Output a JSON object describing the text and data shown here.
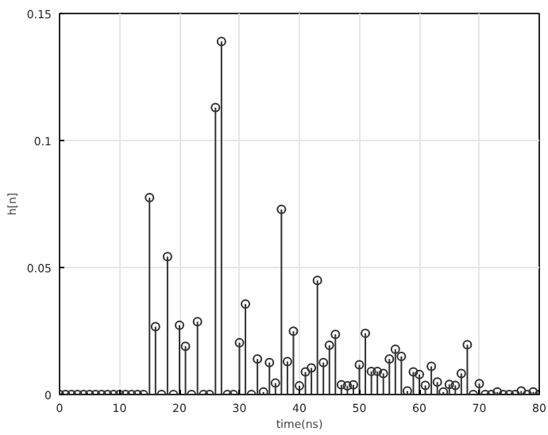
{
  "chart_data": {
    "type": "lollipop",
    "xlabel": "time(ns)",
    "ylabel": "h[n]",
    "x": [
      0,
      1,
      2,
      3,
      4,
      5,
      6,
      7,
      8,
      9,
      10,
      11,
      12,
      13,
      14,
      15,
      16,
      17,
      18,
      19,
      20,
      21,
      22,
      23,
      24,
      25,
      26,
      27,
      28,
      29,
      30,
      31,
      32,
      33,
      34,
      35,
      36,
      37,
      38,
      39,
      40,
      41,
      42,
      43,
      44,
      45,
      46,
      47,
      48,
      49,
      50,
      51,
      52,
      53,
      54,
      55,
      56,
      57,
      58,
      59,
      60,
      61,
      62,
      63,
      64,
      65,
      66,
      67,
      68,
      69,
      70,
      71,
      72,
      73,
      74,
      75,
      76,
      77,
      78,
      79,
      80
    ],
    "series": [
      {
        "color": "#333333",
        "values": [
          0,
          0,
          0,
          0,
          0,
          0,
          0,
          0,
          0,
          0,
          0,
          0,
          0,
          0,
          0,
          0.0775,
          0.0267,
          0,
          0.0543,
          0,
          0.0273,
          0.019,
          0,
          0.0287,
          0,
          0,
          0.113,
          0.139,
          0,
          0,
          0.0204,
          0.0356,
          0,
          0.014,
          0.001,
          0.0126,
          0.0045,
          0.0729,
          0.013,
          0.0249,
          0.0034,
          0.0089,
          0.0105,
          0.0449,
          0.0126,
          0.0194,
          0.0237,
          0.0038,
          0.0034,
          0.0038,
          0.0117,
          0.0241,
          0.0091,
          0.0091,
          0.0083,
          0.014,
          0.0178,
          0.015,
          0.0014,
          0.0089,
          0.0079,
          0.0036,
          0.0111,
          0.0049,
          0.001,
          0.004,
          0.0036,
          0.0083,
          0.0196,
          0,
          0.0043,
          0,
          0,
          0.001,
          0,
          0,
          0,
          0.0014,
          0,
          0.001,
          0
        ]
      }
    ],
    "xlim": [
      0,
      80
    ],
    "ylim": [
      0,
      0.15
    ],
    "xticks": [
      0,
      10,
      20,
      30,
      40,
      50,
      60,
      70,
      80
    ],
    "yticks": [
      0,
      0.05,
      0.1,
      0.15
    ],
    "grid": true,
    "marker": "circle"
  }
}
